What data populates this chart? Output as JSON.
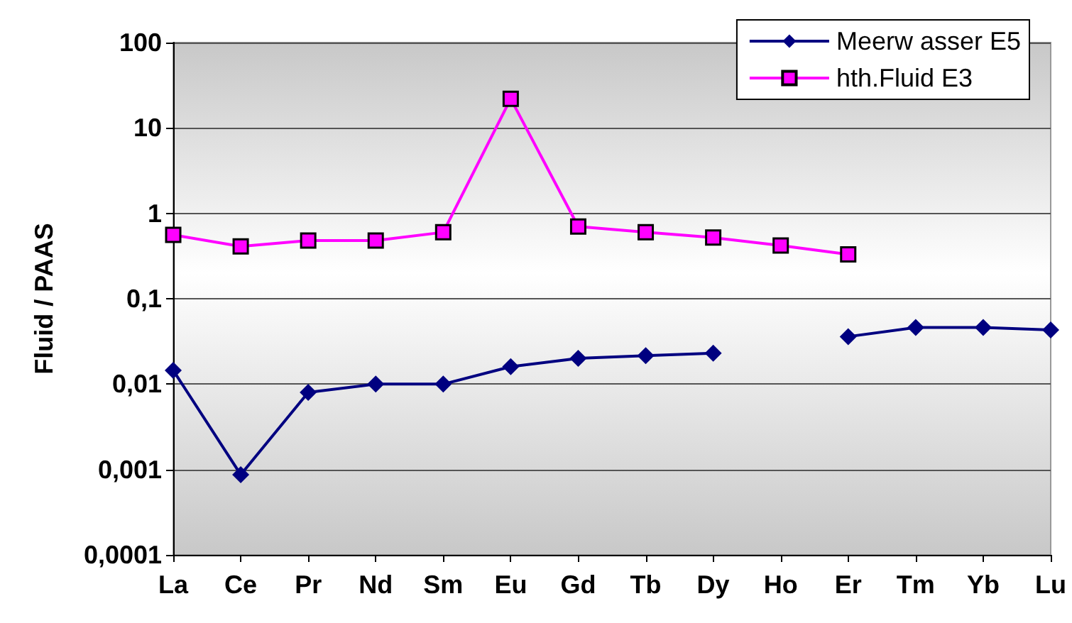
{
  "chart_data": {
    "type": "line",
    "ylabel": "Fluid / PAAS",
    "categories": [
      "La",
      "Ce",
      "Pr",
      "Nd",
      "Sm",
      "Eu",
      "Gd",
      "Tb",
      "Dy",
      "Ho",
      "Er",
      "Tm",
      "Yb",
      "Lu"
    ],
    "series": [
      {
        "name": "Meerw asser E5",
        "color": "#000080",
        "marker": "diamond",
        "values": [
          0.0145,
          0.00087,
          0.008,
          0.01,
          0.01,
          0.016,
          0.02,
          0.0215,
          0.023,
          null,
          0.036,
          0.046,
          0.046,
          0.043
        ]
      },
      {
        "name": "hth.Fluid E3",
        "color": "#ff00ff",
        "marker": "square",
        "values": [
          0.56,
          0.41,
          0.48,
          0.48,
          0.6,
          22,
          0.7,
          0.6,
          0.52,
          0.42,
          0.33,
          null,
          null,
          null
        ]
      }
    ],
    "log": "y",
    "ylim": [
      0.0001,
      100
    ],
    "yticks": [
      {
        "value": 0.0001,
        "label": "0,0001"
      },
      {
        "value": 0.001,
        "label": "0,001"
      },
      {
        "value": 0.01,
        "label": "0,01"
      },
      {
        "value": 0.1,
        "label": "0,1"
      },
      {
        "value": 1,
        "label": "1"
      },
      {
        "value": 10,
        "label": "10"
      },
      {
        "value": 100,
        "label": "100"
      }
    ],
    "grid": "y",
    "legend": "top right",
    "line_style": "solid"
  }
}
